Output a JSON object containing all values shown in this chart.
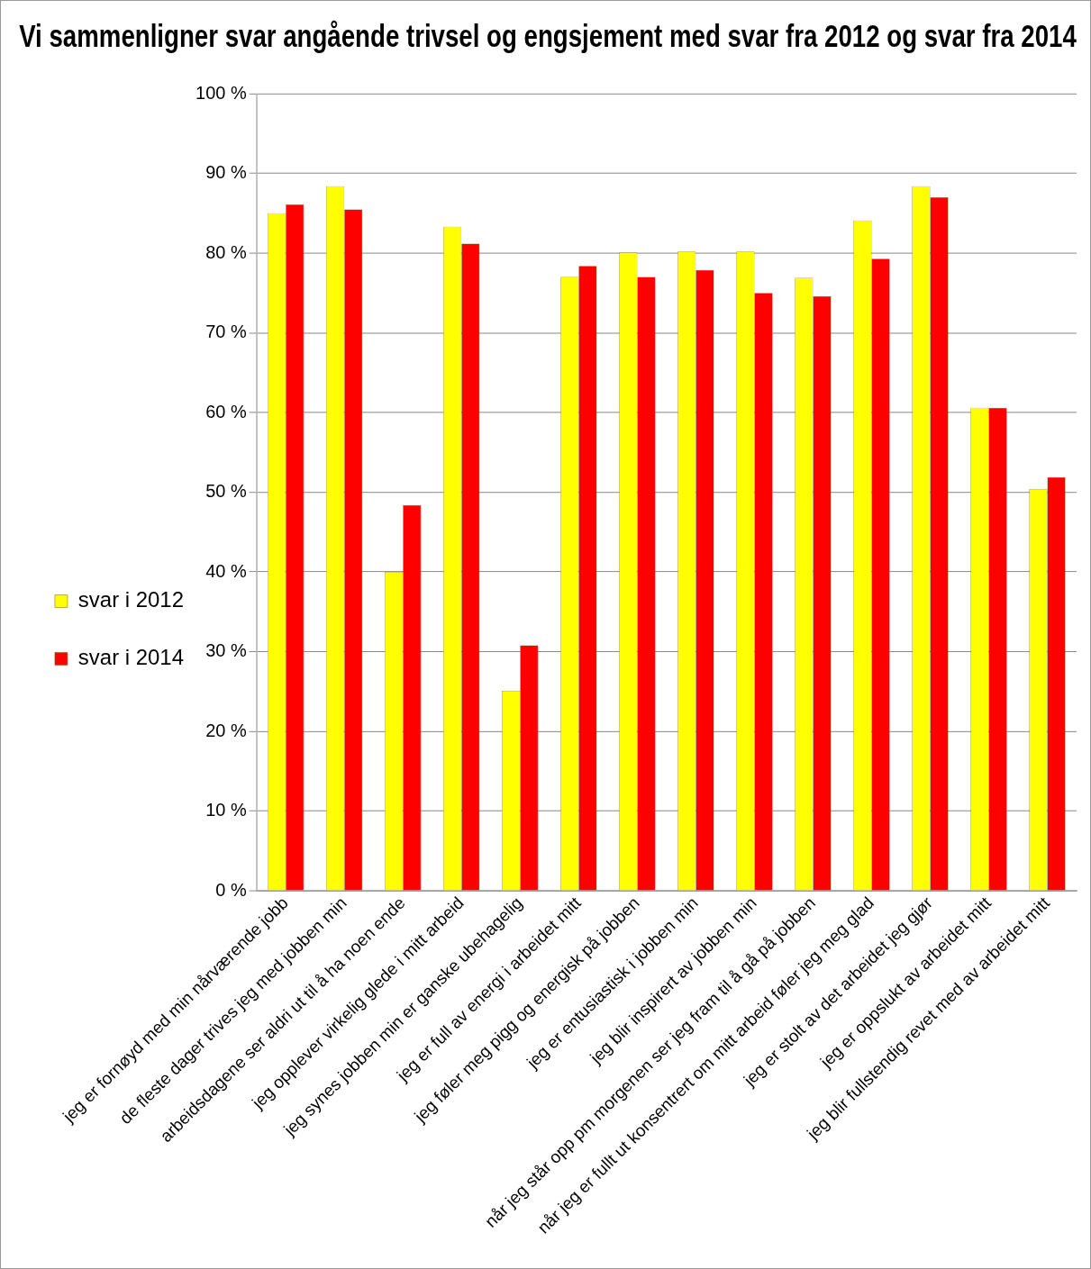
{
  "chart_data": {
    "type": "bar",
    "title": "Vi sammenligner svar angående trivsel og engsjement med svar fra 2012 og svar fra 2014",
    "categories": [
      "jeg er fornøyd med min nårværende jobb",
      "de fleste dager trives jeg med jobben min",
      "arbeidsdagene ser aldri ut til å ha noen ende",
      "jeg opplever virkelig glede i mitt arbeid",
      "jeg synes jobben min er ganske ubehagelig",
      "jeg er full av energi i arbeidet mitt",
      "jeg føler meg pigg og energisk på jobben",
      "jeg er entusiastisk i jobben min",
      "jeg blir inspirert av jobben min",
      "når jeg står opp pm morgenen ser jeg fram til å gå på jobben",
      "når jeg er fullt ut konsentrert om mitt arbeid føler jeg meg glad",
      "jeg er stolt av det arbeidet jeg gjør",
      "jeg er oppslukt av arbeidet mitt",
      "jeg blir fullstendig revet med av arbeidet mitt"
    ],
    "series": [
      {
        "name": "svar i 2012",
        "color": "#ffff00",
        "values": [
          85,
          88.4,
          40,
          83.3,
          25.1,
          77,
          80.1,
          80.2,
          80.2,
          76.9,
          84.1,
          88.4,
          60.6,
          50.4
        ]
      },
      {
        "name": "svar i 2014",
        "color": "#ff0000",
        "values": [
          86.1,
          85.5,
          48.4,
          81.2,
          30.8,
          78.4,
          77,
          77.9,
          75,
          74.6,
          79.3,
          87,
          60.6,
          51.9
        ]
      }
    ],
    "ylim": [
      0,
      100
    ],
    "yticks": [
      {
        "value": 0,
        "label": "0 %"
      },
      {
        "value": 10,
        "label": "10 %"
      },
      {
        "value": 20,
        "label": "20 %"
      },
      {
        "value": 30,
        "label": "30 %"
      },
      {
        "value": 40,
        "label": "40 %"
      },
      {
        "value": 50,
        "label": "50 %"
      },
      {
        "value": 60,
        "label": "60 %"
      },
      {
        "value": 70,
        "label": "70 %"
      },
      {
        "value": 80,
        "label": "80 %"
      },
      {
        "value": 90,
        "label": "90 %"
      },
      {
        "value": 100,
        "label": "100 %"
      }
    ],
    "grid": "y",
    "legend": "left"
  }
}
